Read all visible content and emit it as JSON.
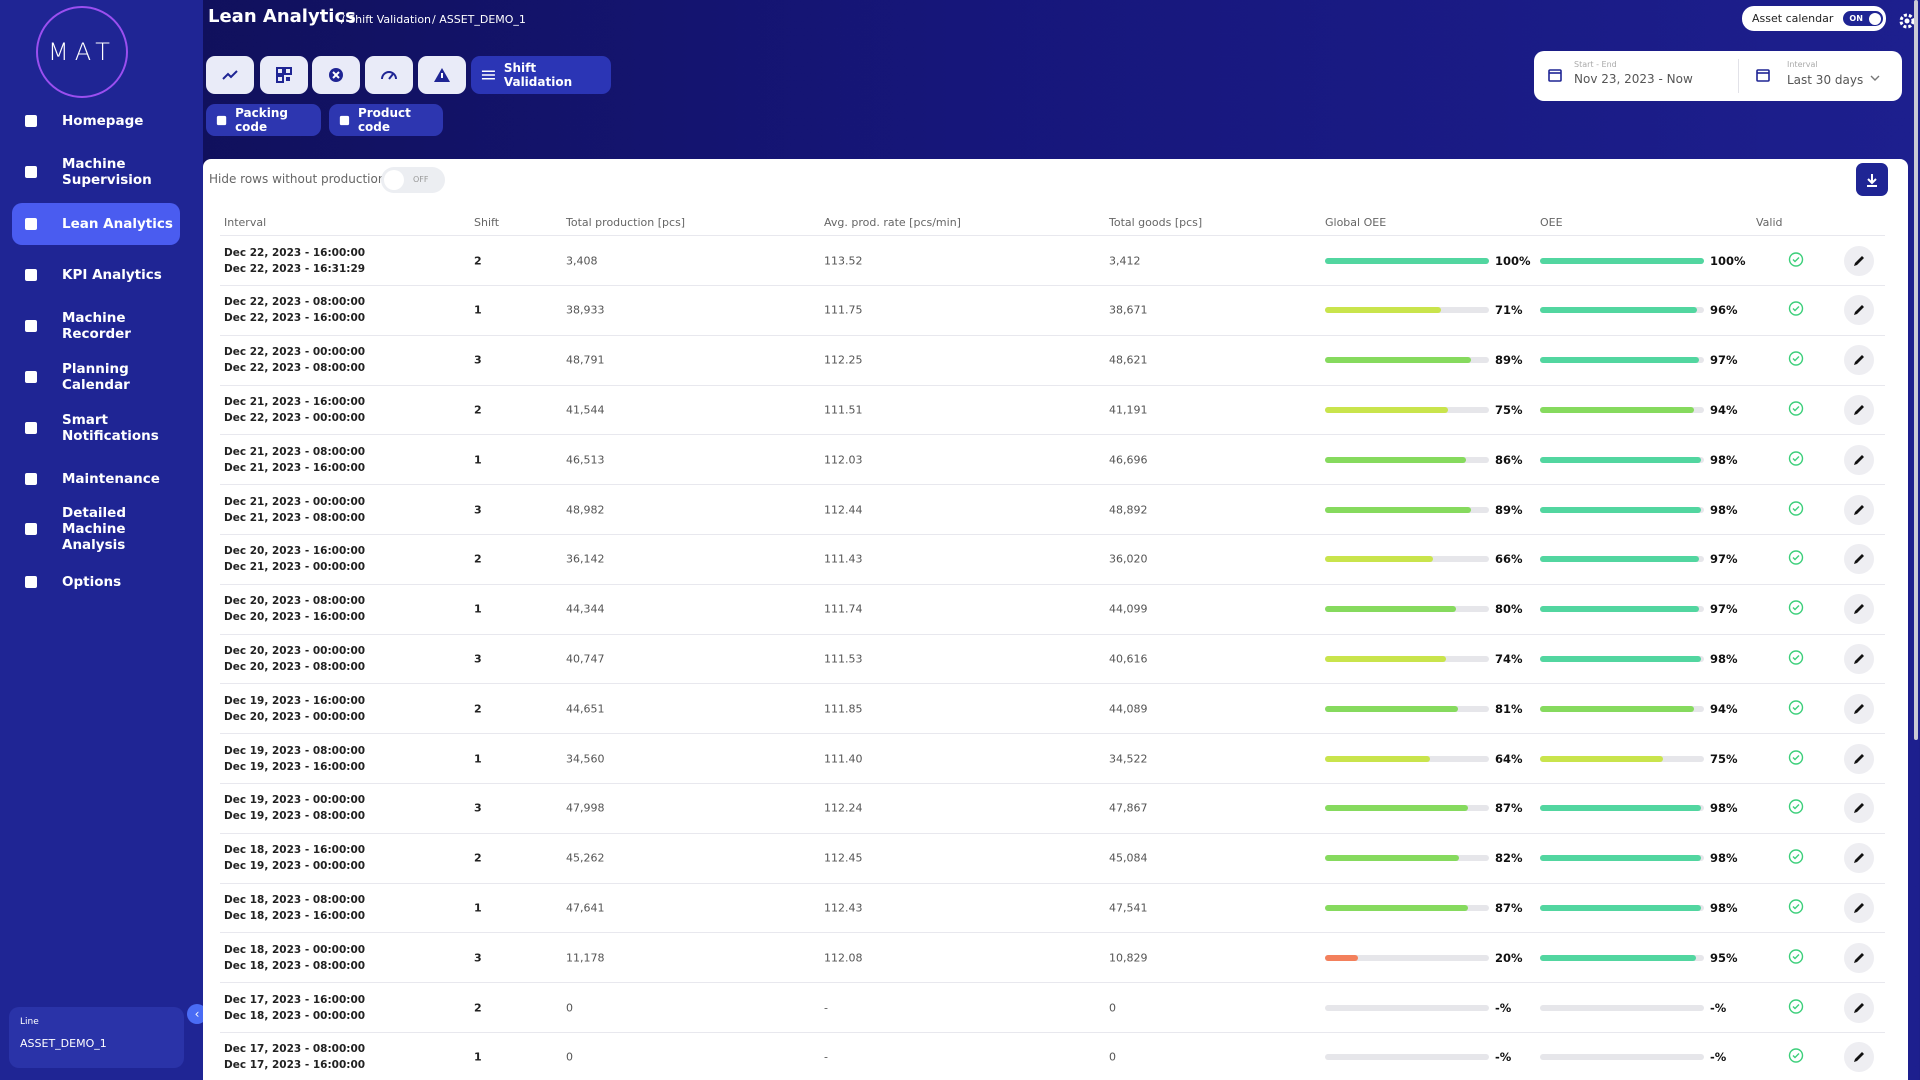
{
  "sidebar": {
    "logo": "MAT",
    "nav": [
      "Homepage",
      "Machine Supervision",
      "Lean Analytics",
      "KPI Analytics",
      "Machine Recorder",
      "Planning Calendar",
      "Smart Notifications",
      "Maintenance",
      "Detailed Machine Analysis",
      "Options"
    ],
    "line_label": "Line",
    "line_value": "ASSET_DEMO_1"
  },
  "header": {
    "title": "Lean Analytics",
    "crumb_1": "/ Shift Validation",
    "crumb_2": "/ ASSET_DEMO_1",
    "asset_calendar": "Asset calendar",
    "asset_calendar_state": "ON",
    "active_view": "Shift Validation",
    "filters": [
      "Packing code",
      "Product code"
    ],
    "range_label": "Start - End",
    "range_value": "Nov 23, 2023 - Now",
    "interval_label": "Interval",
    "interval_value": "Last 30 days"
  },
  "table": {
    "hide_label": "Hide rows without production",
    "hide_state": "OFF",
    "columns": [
      "Interval",
      "Shift",
      "Total production [pcs]",
      "Avg. prod. rate [pcs/min]",
      "Total goods [pcs]",
      "Global OEE",
      "OEE",
      "Valid"
    ],
    "rows": [
      {
        "start": "Dec 22, 2023 - 16:00:00",
        "end": "Dec 22, 2023 - 16:31:29",
        "shift": 2,
        "production": "3,408",
        "rate": "113.52",
        "goods": "3,412",
        "global_oee": {
          "value": 100,
          "label": "100%"
        },
        "oee": {
          "value": 100,
          "label": "100%"
        }
      },
      {
        "start": "Dec 22, 2023 - 08:00:00",
        "end": "Dec 22, 2023 - 16:00:00",
        "shift": 1,
        "production": "38,933",
        "rate": "111.75",
        "goods": "38,671",
        "global_oee": {
          "value": 71,
          "label": "71%"
        },
        "oee": {
          "value": 96,
          "label": "96%"
        }
      },
      {
        "start": "Dec 22, 2023 - 00:00:00",
        "end": "Dec 22, 2023 - 08:00:00",
        "shift": 3,
        "production": "48,791",
        "rate": "112.25",
        "goods": "48,621",
        "global_oee": {
          "value": 89,
          "label": "89%"
        },
        "oee": {
          "value": 97,
          "label": "97%"
        }
      },
      {
        "start": "Dec 21, 2023 - 16:00:00",
        "end": "Dec 22, 2023 - 00:00:00",
        "shift": 2,
        "production": "41,544",
        "rate": "111.51",
        "goods": "41,191",
        "global_oee": {
          "value": 75,
          "label": "75%"
        },
        "oee": {
          "value": 94,
          "label": "94%"
        }
      },
      {
        "start": "Dec 21, 2023 - 08:00:00",
        "end": "Dec 21, 2023 - 16:00:00",
        "shift": 1,
        "production": "46,513",
        "rate": "112.03",
        "goods": "46,696",
        "global_oee": {
          "value": 86,
          "label": "86%"
        },
        "oee": {
          "value": 98,
          "label": "98%"
        }
      },
      {
        "start": "Dec 21, 2023 - 00:00:00",
        "end": "Dec 21, 2023 - 08:00:00",
        "shift": 3,
        "production": "48,982",
        "rate": "112.44",
        "goods": "48,892",
        "global_oee": {
          "value": 89,
          "label": "89%"
        },
        "oee": {
          "value": 98,
          "label": "98%"
        }
      },
      {
        "start": "Dec 20, 2023 - 16:00:00",
        "end": "Dec 21, 2023 - 00:00:00",
        "shift": 2,
        "production": "36,142",
        "rate": "111.43",
        "goods": "36,020",
        "global_oee": {
          "value": 66,
          "label": "66%"
        },
        "oee": {
          "value": 97,
          "label": "97%"
        }
      },
      {
        "start": "Dec 20, 2023 - 08:00:00",
        "end": "Dec 20, 2023 - 16:00:00",
        "shift": 1,
        "production": "44,344",
        "rate": "111.74",
        "goods": "44,099",
        "global_oee": {
          "value": 80,
          "label": "80%"
        },
        "oee": {
          "value": 97,
          "label": "97%"
        }
      },
      {
        "start": "Dec 20, 2023 - 00:00:00",
        "end": "Dec 20, 2023 - 08:00:00",
        "shift": 3,
        "production": "40,747",
        "rate": "111.53",
        "goods": "40,616",
        "global_oee": {
          "value": 74,
          "label": "74%"
        },
        "oee": {
          "value": 98,
          "label": "98%"
        }
      },
      {
        "start": "Dec 19, 2023 - 16:00:00",
        "end": "Dec 20, 2023 - 00:00:00",
        "shift": 2,
        "production": "44,651",
        "rate": "111.85",
        "goods": "44,089",
        "global_oee": {
          "value": 81,
          "label": "81%"
        },
        "oee": {
          "value": 94,
          "label": "94%"
        }
      },
      {
        "start": "Dec 19, 2023 - 08:00:00",
        "end": "Dec 19, 2023 - 16:00:00",
        "shift": 1,
        "production": "34,560",
        "rate": "111.40",
        "goods": "34,522",
        "global_oee": {
          "value": 64,
          "label": "64%"
        },
        "oee": {
          "value": 75,
          "label": "75%"
        }
      },
      {
        "start": "Dec 19, 2023 - 00:00:00",
        "end": "Dec 19, 2023 - 08:00:00",
        "shift": 3,
        "production": "47,998",
        "rate": "112.24",
        "goods": "47,867",
        "global_oee": {
          "value": 87,
          "label": "87%"
        },
        "oee": {
          "value": 98,
          "label": "98%"
        }
      },
      {
        "start": "Dec 18, 2023 - 16:00:00",
        "end": "Dec 19, 2023 - 00:00:00",
        "shift": 2,
        "production": "45,262",
        "rate": "112.45",
        "goods": "45,084",
        "global_oee": {
          "value": 82,
          "label": "82%"
        },
        "oee": {
          "value": 98,
          "label": "98%"
        }
      },
      {
        "start": "Dec 18, 2023 - 08:00:00",
        "end": "Dec 18, 2023 - 16:00:00",
        "shift": 1,
        "production": "47,641",
        "rate": "112.43",
        "goods": "47,541",
        "global_oee": {
          "value": 87,
          "label": "87%"
        },
        "oee": {
          "value": 98,
          "label": "98%"
        }
      },
      {
        "start": "Dec 18, 2023 - 00:00:00",
        "end": "Dec 18, 2023 - 08:00:00",
        "shift": 3,
        "production": "11,178",
        "rate": "112.08",
        "goods": "10,829",
        "global_oee": {
          "value": 20,
          "label": "20%"
        },
        "oee": {
          "value": 95,
          "label": "95%"
        }
      },
      {
        "start": "Dec 17, 2023 - 16:00:00",
        "end": "Dec 18, 2023 - 00:00:00",
        "shift": 2,
        "production": "0",
        "rate": "-",
        "goods": "0",
        "global_oee": {
          "value": null,
          "label": "-%"
        },
        "oee": {
          "value": null,
          "label": "-%"
        }
      },
      {
        "start": "Dec 17, 2023 - 08:00:00",
        "end": "Dec 17, 2023 - 16:00:00",
        "shift": 1,
        "production": "0",
        "rate": "-",
        "goods": "0",
        "global_oee": {
          "value": null,
          "label": "-%"
        },
        "oee": {
          "value": null,
          "label": "-%"
        }
      }
    ]
  }
}
